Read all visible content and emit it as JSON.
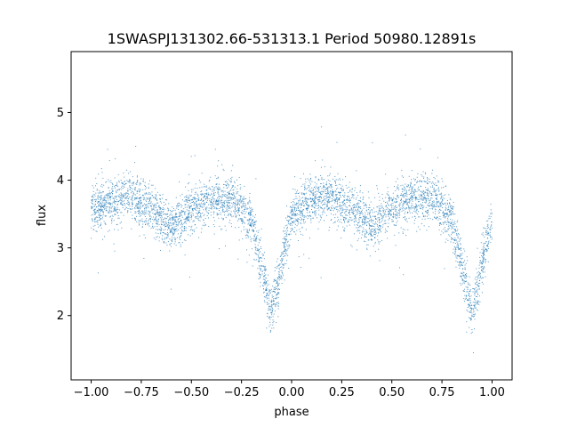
{
  "chart_data": {
    "type": "scatter",
    "title": "1SWASPJ131302.66-531313.1 Period 50980.12891s",
    "xlabel": "phase",
    "ylabel": "flux",
    "xlim": [
      -1.1,
      1.1
    ],
    "ylim": [
      1.05,
      5.9
    ],
    "xticks": [
      -1.0,
      -0.75,
      -0.5,
      -0.25,
      0.0,
      0.25,
      0.5,
      0.75,
      1.0
    ],
    "xtick_labels": [
      "−1.00",
      "−0.75",
      "−0.50",
      "−0.25",
      "0.00",
      "0.25",
      "0.50",
      "0.75",
      "1.00"
    ],
    "yticks": [
      2,
      3,
      4,
      5
    ],
    "ytick_labels": [
      "2",
      "3",
      "4",
      "5"
    ],
    "grid": false,
    "legend": "none",
    "series": [
      {
        "color": "#1f77b4",
        "marker": "point",
        "description_points": [
          {
            "phase": -1.0,
            "flux": 3.55
          },
          {
            "phase": -0.9,
            "flux": 3.7
          },
          {
            "phase": -0.8,
            "flux": 3.75
          },
          {
            "phase": -0.7,
            "flux": 3.6
          },
          {
            "phase": -0.6,
            "flux": 3.3
          },
          {
            "phase": -0.5,
            "flux": 3.55
          },
          {
            "phase": -0.4,
            "flux": 3.72
          },
          {
            "phase": -0.3,
            "flux": 3.72
          },
          {
            "phase": -0.2,
            "flux": 3.4
          },
          {
            "phase": -0.1,
            "flux": 2.05
          },
          {
            "phase": 0.0,
            "flux": 3.45
          },
          {
            "phase": 0.1,
            "flux": 3.7
          },
          {
            "phase": 0.2,
            "flux": 3.75
          },
          {
            "phase": 0.3,
            "flux": 3.6
          },
          {
            "phase": 0.4,
            "flux": 3.3
          },
          {
            "phase": 0.5,
            "flux": 3.55
          },
          {
            "phase": 0.6,
            "flux": 3.72
          },
          {
            "phase": 0.7,
            "flux": 3.72
          },
          {
            "phase": 0.8,
            "flux": 3.4
          },
          {
            "phase": 0.9,
            "flux": 2.05
          },
          {
            "phase": 1.0,
            "flux": 3.45
          }
        ]
      }
    ]
  }
}
